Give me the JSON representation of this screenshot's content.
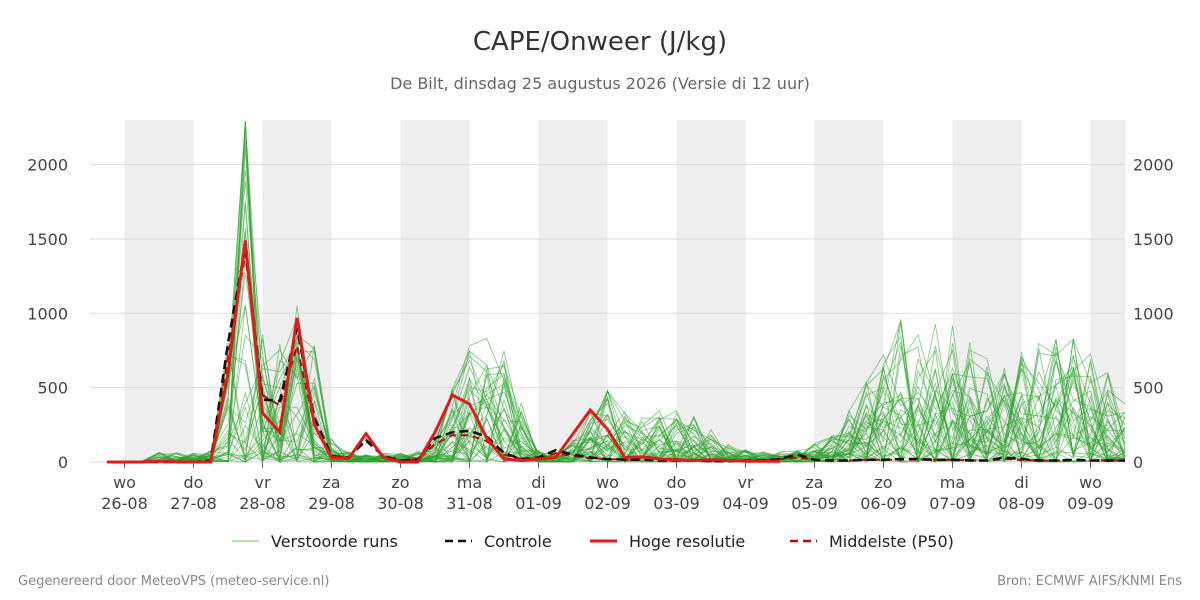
{
  "chart_data": {
    "type": "line",
    "title": "CAPE/Onweer (J/kg)",
    "subtitle": "De Bilt, dinsdag 25 augustus 2026 (Versie di 12 uur)",
    "ylim": [
      0,
      2300
    ],
    "y_ticks": [
      0,
      500,
      1000,
      1500,
      2000
    ],
    "grid": true,
    "legend_position": "bottom",
    "x_start_day": 0.0,
    "x_end_day": 14.5,
    "weekend_bands": [
      [
        0.0,
        1.0
      ],
      [
        2.0,
        3.0
      ],
      [
        4.0,
        5.0
      ],
      [
        6.0,
        7.0
      ],
      [
        8.0,
        9.0
      ],
      [
        10.0,
        11.0
      ],
      [
        12.0,
        13.0
      ],
      [
        14.0,
        14.5
      ]
    ],
    "day_labels": [
      {
        "day": "wo",
        "date": "26-08"
      },
      {
        "day": "do",
        "date": "27-08"
      },
      {
        "day": "vr",
        "date": "28-08"
      },
      {
        "day": "za",
        "date": "29-08"
      },
      {
        "day": "zo",
        "date": "30-08"
      },
      {
        "day": "ma",
        "date": "31-08"
      },
      {
        "day": "di",
        "date": "01-09"
      },
      {
        "day": "wo",
        "date": "02-09"
      },
      {
        "day": "do",
        "date": "03-09"
      },
      {
        "day": "vr",
        "date": "04-09"
      },
      {
        "day": "za",
        "date": "05-09"
      },
      {
        "day": "zo",
        "date": "06-09"
      },
      {
        "day": "ma",
        "date": "07-09"
      },
      {
        "day": "di",
        "date": "08-09"
      },
      {
        "day": "wo",
        "date": "09-09"
      }
    ],
    "legend": [
      {
        "label": "Verstoorde runs",
        "style": "thin",
        "color": "#2ca02c"
      },
      {
        "label": "Controle",
        "style": "dashed",
        "color": "#111111"
      },
      {
        "label": "Hoge resolutie",
        "style": "bold",
        "color": "#e31a1c"
      },
      {
        "label": "Middelste (P50)",
        "style": "dashed",
        "color": "#b01010"
      }
    ],
    "colors": {
      "ensemble": "#2ca02c",
      "control": "#111111",
      "highres": "#e31a1c",
      "median": "#b01010",
      "weekend": "#eeeeee",
      "grid": "#dddddd"
    },
    "series": [
      {
        "name": "Hoge resolutie",
        "kind": "highres",
        "x": [
          -0.25,
          0.0,
          0.25,
          0.5,
          0.75,
          1.0,
          1.25,
          1.5,
          1.75,
          2.0,
          2.25,
          2.5,
          2.75,
          3.0,
          3.25,
          3.5,
          3.75,
          4.0,
          4.25,
          4.5,
          4.75,
          5.0,
          5.25,
          5.5,
          5.75,
          6.0,
          6.25,
          6.5,
          6.75,
          7.0,
          7.25,
          7.5,
          7.75,
          8.0,
          8.25,
          8.5,
          8.75,
          9.0,
          9.25,
          9.5
        ],
        "y": [
          0,
          0,
          0,
          5,
          0,
          0,
          0,
          600,
          1490,
          330,
          200,
          970,
          250,
          30,
          25,
          190,
          30,
          0,
          0,
          200,
          450,
          390,
          160,
          20,
          10,
          20,
          30,
          190,
          350,
          220,
          30,
          35,
          20,
          15,
          10,
          15,
          10,
          5,
          5,
          5
        ]
      },
      {
        "name": "Controle",
        "kind": "control",
        "x": [
          -0.25,
          0.0,
          0.25,
          0.5,
          0.75,
          1.0,
          1.25,
          1.5,
          1.75,
          2.0,
          2.25,
          2.5,
          2.75,
          3.0,
          3.25,
          3.5,
          3.75,
          4.0,
          4.25,
          4.5,
          4.75,
          5.0,
          5.25,
          5.5,
          5.75,
          6.0,
          6.25,
          6.5,
          6.75,
          7.0,
          7.25,
          7.5,
          7.75,
          8.0,
          8.25,
          8.5,
          8.75,
          9.0,
          9.25,
          9.5,
          9.75,
          10.0,
          10.25,
          10.5,
          10.75,
          11.0,
          11.25,
          11.5,
          11.75,
          12.0,
          12.25,
          12.5,
          12.75,
          13.0,
          13.25,
          13.5,
          13.75,
          14.0,
          14.25,
          14.5
        ],
        "y": [
          0,
          0,
          0,
          0,
          0,
          0,
          10,
          800,
          1450,
          420,
          410,
          900,
          300,
          40,
          30,
          150,
          40,
          10,
          15,
          160,
          200,
          210,
          170,
          60,
          20,
          30,
          80,
          50,
          30,
          20,
          15,
          15,
          10,
          10,
          10,
          5,
          5,
          10,
          10,
          20,
          50,
          15,
          10,
          10,
          15,
          15,
          20,
          20,
          15,
          15,
          10,
          10,
          30,
          20,
          10,
          10,
          15,
          10,
          10,
          10
        ]
      },
      {
        "name": "Middelste (P50)",
        "kind": "median",
        "x": [
          -0.25,
          0.0,
          0.25,
          0.5,
          0.75,
          1.0,
          1.25,
          1.5,
          1.75,
          2.0,
          2.25,
          2.5,
          2.75,
          3.0,
          3.25,
          3.5,
          3.75,
          4.0,
          4.25,
          4.5,
          4.75,
          5.0,
          5.25,
          5.5,
          5.75,
          6.0,
          6.25,
          6.5,
          6.75,
          7.0,
          7.25,
          7.5,
          7.75,
          8.0,
          8.25,
          8.5,
          8.75,
          9.0,
          9.25,
          9.5,
          9.75,
          10.0,
          10.25,
          10.5,
          10.75,
          11.0,
          11.25,
          11.5,
          11.75,
          12.0,
          12.25,
          12.5,
          12.75,
          13.0,
          13.25,
          13.5,
          13.75,
          14.0,
          14.25,
          14.5
        ],
        "y": [
          0,
          0,
          0,
          5,
          5,
          0,
          5,
          700,
          1400,
          450,
          380,
          780,
          250,
          40,
          35,
          140,
          40,
          10,
          20,
          120,
          180,
          180,
          140,
          50,
          20,
          25,
          60,
          40,
          25,
          20,
          15,
          15,
          10,
          10,
          10,
          5,
          5,
          10,
          10,
          20,
          30,
          15,
          10,
          10,
          15,
          15,
          15,
          15,
          15,
          15,
          10,
          10,
          20,
          15,
          10,
          10,
          15,
          10,
          10,
          10
        ]
      }
    ]
  },
  "footer": {
    "left": "Gegenereerd door MeteoVPS (meteo-service.nl)",
    "right": "Bron: ECMWF AIFS/KNMI Ens"
  }
}
